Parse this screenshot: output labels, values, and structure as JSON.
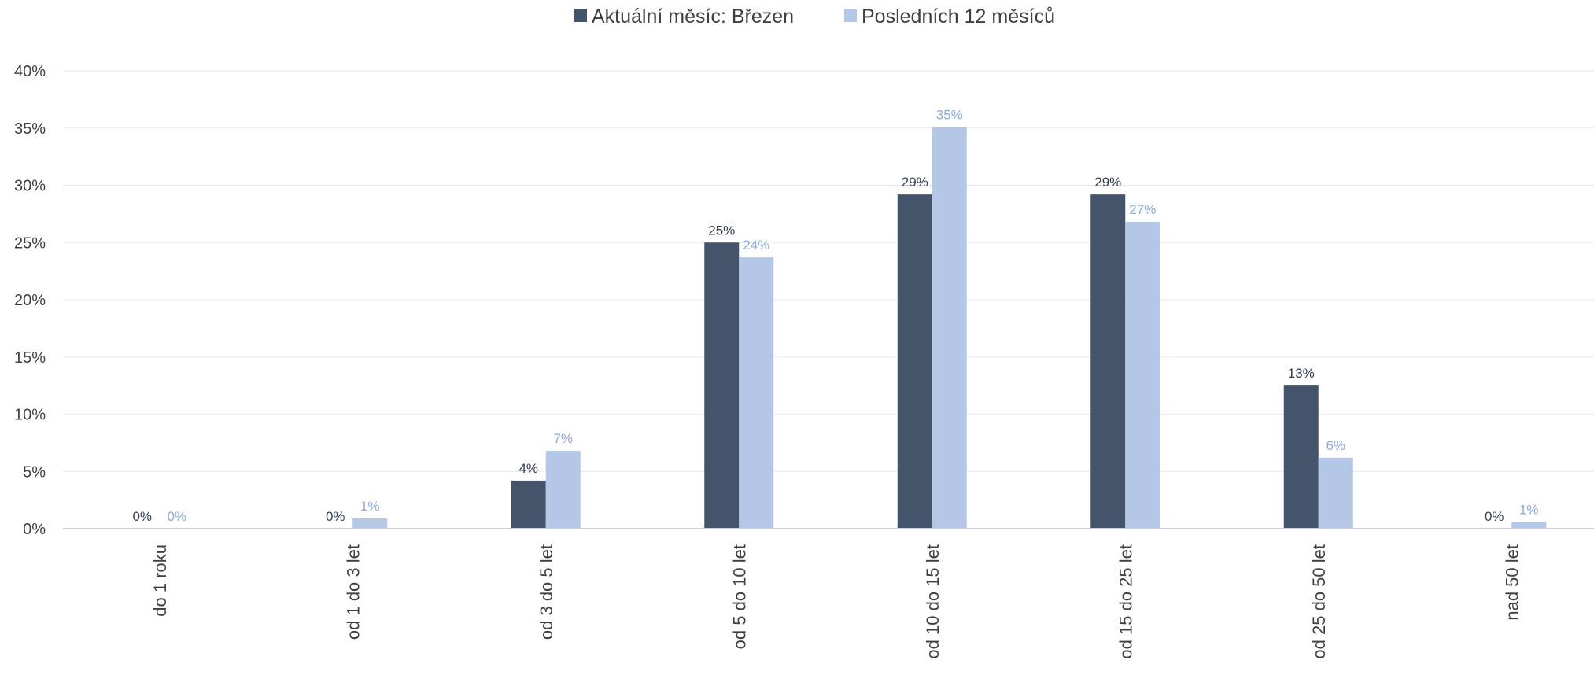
{
  "chart_data": {
    "type": "bar",
    "categories": [
      "do 1 roku",
      "od 1 do 3 let",
      "od 3 do 5 let",
      "od 5 do 10 let",
      "od 10 do 15 let",
      "od 15 do 25 let",
      "od 25 do 50 let",
      "nad 50 let"
    ],
    "series": [
      {
        "name": "Aktuální měsíc: Březen",
        "color": "#44546a",
        "label_color": "#333f50",
        "values": [
          0,
          0,
          4.2,
          25,
          29.2,
          29.2,
          12.5,
          0
        ],
        "labels": [
          "0%",
          "0%",
          "4%",
          "25%",
          "29%",
          "29%",
          "13%",
          "0%"
        ]
      },
      {
        "name": "Posledních 12 měsíců",
        "color": "#b4c7e7",
        "label_color": "#8eaadb",
        "values": [
          0,
          0.9,
          6.8,
          23.7,
          35.1,
          26.8,
          6.2,
          0.6
        ],
        "labels": [
          "0%",
          "1%",
          "7%",
          "24%",
          "35%",
          "27%",
          "6%",
          "1%"
        ]
      }
    ],
    "yticks": [
      "0%",
      "5%",
      "10%",
      "15%",
      "20%",
      "25%",
      "30%",
      "35%",
      "40%"
    ],
    "ylim": [
      0,
      40
    ],
    "grid": true,
    "legend_position": "top",
    "gridline_color": "#e8e8e8",
    "axis_color": "#d0d0d0"
  }
}
